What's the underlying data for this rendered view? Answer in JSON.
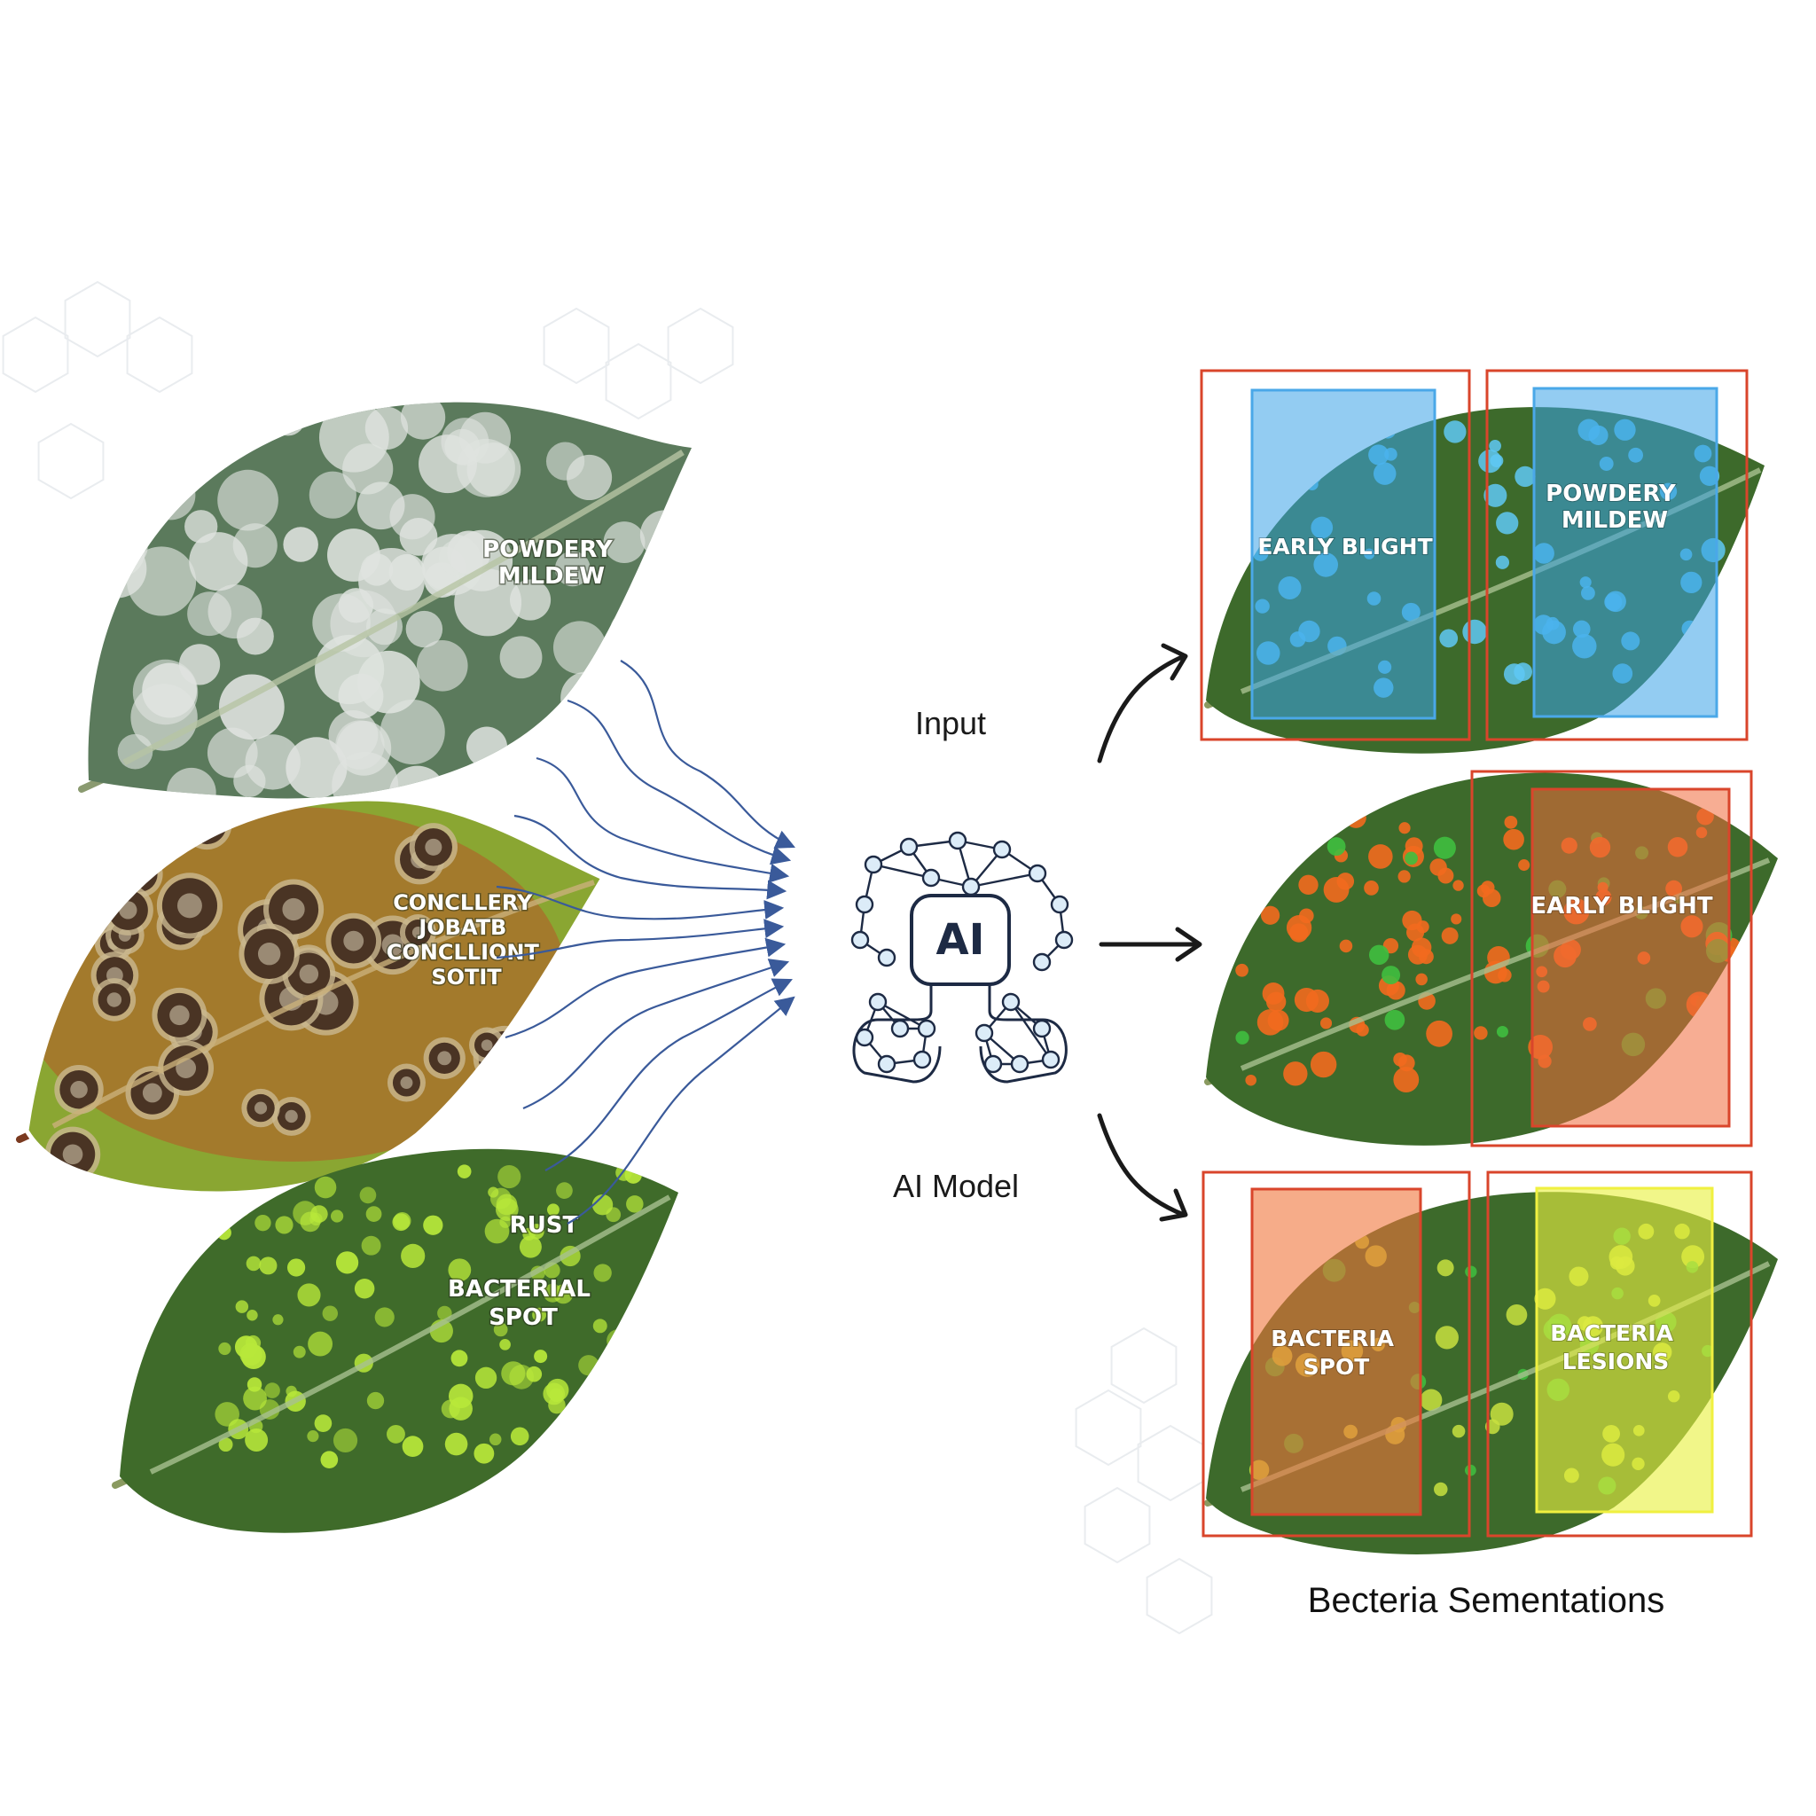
{
  "input_leaves": [
    {
      "lines": [
        "POWDERY",
        "MILDEW"
      ],
      "colors": {
        "base": "#5b7a5c",
        "spots": "#dfe3df"
      }
    },
    {
      "lines": [
        "CONCLLERY",
        "JOBATB",
        "CONCLLIONT",
        "SOTIT"
      ],
      "colors": {
        "base": "#a37a2c",
        "spots": "#4a3424",
        "edge": "#7aa23a"
      }
    },
    {
      "lines": [
        "RUST",
        "BACTERIAL",
        "SPOT"
      ],
      "colors": {
        "base": "#3f6b2a",
        "spots": "#b8e83a"
      }
    }
  ],
  "flow": {
    "input_label": "Input",
    "model_label": "AI Model",
    "ai_icon_text": "AI"
  },
  "outputs": [
    {
      "boxes": [
        {
          "lines": [
            "EARLY BLIGHT"
          ],
          "fill": "#3aa3e8"
        },
        {
          "lines": [
            "POWDERY",
            "MILDEW"
          ],
          "fill": "#3aa3e8"
        }
      ],
      "spot_color": "#5fc8f5"
    },
    {
      "boxes": [
        {
          "lines": [
            "EARLY BLIGHT"
          ],
          "fill": "#f06a3a"
        }
      ],
      "spot_color": "#f26a1e"
    },
    {
      "boxes": [
        {
          "lines": [
            "BACTERIA",
            "SPOT"
          ],
          "fill": "#f0743a"
        },
        {
          "lines": [
            "BACTERIA",
            "LESIONS"
          ],
          "fill": "#e8f040"
        }
      ],
      "spot_color": "#c8e040"
    }
  ],
  "caption": "Becteria Sementations",
  "colors": {
    "frame_red": "#d9452b",
    "arrow_blue": "#3a5a9a",
    "arrow_black": "#1a1a1a",
    "leaf_green": "#3d6a2b",
    "vein": "#b9c9a0"
  }
}
